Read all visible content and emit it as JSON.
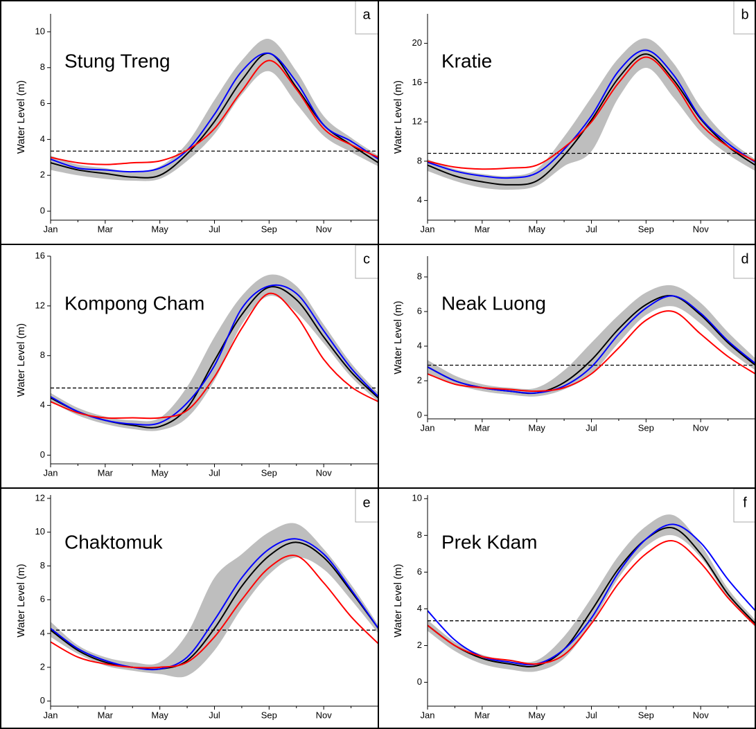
{
  "chart_data": [
    {
      "type": "line",
      "title": "Stung Treng",
      "panel_label": "a",
      "y_label": "Water Level (m)",
      "categories": [
        "Jan",
        null,
        "Mar",
        null,
        "May",
        null,
        "Jul",
        null,
        "Sep",
        null,
        "Nov",
        null,
        null
      ],
      "ylim": [
        -0.5,
        11
      ],
      "yticks": [
        0,
        2,
        4,
        6,
        8,
        10
      ],
      "band": {
        "color": "#bebebe",
        "lower": [
          2.3,
          2.0,
          1.8,
          1.7,
          1.8,
          2.8,
          4.3,
          6.5,
          7.8,
          6.0,
          4.2,
          3.3,
          2.5
        ],
        "upper": [
          3.1,
          2.6,
          2.4,
          2.2,
          2.5,
          3.8,
          6.2,
          8.4,
          9.6,
          7.8,
          5.3,
          4.1,
          3.1
        ]
      },
      "series": [
        {
          "color": "#000000",
          "values": [
            2.7,
            2.3,
            2.1,
            1.9,
            2.0,
            3.2,
            5.0,
            7.3,
            8.8,
            6.9,
            4.8,
            3.7,
            2.7
          ]
        },
        {
          "color": "#0000ff",
          "values": [
            2.9,
            2.4,
            2.3,
            2.2,
            2.4,
            3.4,
            5.4,
            7.8,
            8.8,
            7.2,
            4.8,
            3.9,
            2.9
          ]
        },
        {
          "color": "#ff0000",
          "values": [
            3.0,
            2.7,
            2.6,
            2.7,
            2.8,
            3.4,
            4.6,
            6.7,
            8.4,
            6.8,
            4.6,
            3.7,
            3.0
          ]
        }
      ],
      "reference_line": {
        "value": 3.35,
        "style": "dashed",
        "color": "#000000"
      }
    },
    {
      "type": "line",
      "title": "Kratie",
      "panel_label": "b",
      "y_label": "Water Level (m)",
      "categories": [
        "Jan",
        null,
        "Mar",
        null,
        "May",
        null,
        "Jul",
        null,
        "Sep",
        null,
        "Nov",
        null,
        null
      ],
      "ylim": [
        2,
        23
      ],
      "yticks": [
        4,
        8,
        12,
        16,
        20
      ],
      "band": {
        "color": "#bebebe",
        "lower": [
          7.0,
          6.0,
          5.3,
          5.1,
          5.5,
          7.5,
          9.0,
          14.5,
          17.5,
          14.5,
          11.0,
          8.7,
          7.0
        ],
        "upper": [
          8.2,
          7.2,
          6.7,
          6.5,
          7.2,
          10.5,
          14.5,
          18.5,
          20.5,
          18.0,
          13.5,
          10.3,
          8.2
        ]
      },
      "series": [
        {
          "color": "#000000",
          "values": [
            7.6,
            6.5,
            5.9,
            5.6,
            6.0,
            8.6,
            12.2,
            16.5,
            18.9,
            16.3,
            12.3,
            9.5,
            7.6
          ]
        },
        {
          "color": "#0000ff",
          "values": [
            7.9,
            7.0,
            6.5,
            6.3,
            6.8,
            9.2,
            12.6,
            17.2,
            19.3,
            16.8,
            12.4,
            9.8,
            7.9
          ]
        },
        {
          "color": "#ff0000",
          "values": [
            8.0,
            7.4,
            7.2,
            7.3,
            7.6,
            9.4,
            12.0,
            16.0,
            18.6,
            16.0,
            11.8,
            9.5,
            8.0
          ]
        }
      ],
      "reference_line": {
        "value": 8.8,
        "style": "dashed",
        "color": "#000000"
      }
    },
    {
      "type": "line",
      "title": "Kompong Cham",
      "panel_label": "c",
      "y_label": "Water Level (m)",
      "categories": [
        "Jan",
        null,
        "Mar",
        null,
        "May",
        null,
        "Jul",
        null,
        "Sep",
        null,
        "Nov",
        null,
        null
      ],
      "ylim": [
        -0.7,
        16
      ],
      "yticks": [
        0,
        4,
        8,
        12,
        16
      ],
      "band": {
        "color": "#bebebe",
        "lower": [
          4.3,
          3.2,
          2.5,
          2.1,
          2.0,
          3.0,
          6.0,
          10.5,
          12.8,
          11.5,
          9.0,
          6.3,
          4.3
        ],
        "upper": [
          5.0,
          3.8,
          3.1,
          2.8,
          3.0,
          5.5,
          9.5,
          12.8,
          14.5,
          13.6,
          10.5,
          7.4,
          5.0
        ]
      },
      "series": [
        {
          "color": "#000000",
          "values": [
            4.6,
            3.5,
            2.8,
            2.4,
            2.3,
            3.8,
            7.6,
            11.3,
            13.5,
            12.5,
            9.5,
            6.7,
            4.6
          ]
        },
        {
          "color": "#0000ff",
          "values": [
            4.7,
            3.5,
            2.8,
            2.5,
            2.6,
            4.2,
            7.2,
            11.8,
            13.6,
            13.0,
            10.0,
            7.0,
            4.7
          ]
        },
        {
          "color": "#ff0000",
          "values": [
            4.3,
            3.4,
            3.0,
            3.0,
            3.0,
            3.6,
            6.3,
            10.2,
            13.0,
            11.2,
            7.7,
            5.5,
            4.3
          ]
        }
      ],
      "reference_line": {
        "value": 5.4,
        "style": "dashed",
        "color": "#000000"
      }
    },
    {
      "type": "line",
      "title": "Neak Luong",
      "panel_label": "d",
      "y_label": "Water Level (m)",
      "categories": [
        "Jan",
        null,
        "Mar",
        null,
        "May",
        null,
        "Jul",
        null,
        "Sep",
        null,
        "Nov",
        null,
        null
      ],
      "ylim": [
        -0.2,
        9.2
      ],
      "yticks": [
        0,
        2,
        4,
        6,
        8
      ],
      "band": {
        "color": "#bebebe",
        "lower": [
          2.4,
          1.8,
          1.4,
          1.2,
          1.1,
          1.5,
          2.4,
          4.2,
          5.8,
          6.3,
          5.3,
          3.8,
          2.6
        ],
        "upper": [
          3.2,
          2.3,
          1.8,
          1.6,
          1.6,
          2.6,
          4.2,
          5.8,
          7.1,
          7.5,
          6.5,
          4.8,
          3.3
        ]
      },
      "series": [
        {
          "color": "#000000",
          "values": [
            2.8,
            2.0,
            1.6,
            1.4,
            1.3,
            1.9,
            3.2,
            5.0,
            6.4,
            6.9,
            5.8,
            4.2,
            2.9
          ]
        },
        {
          "color": "#0000ff",
          "values": [
            2.8,
            2.0,
            1.6,
            1.4,
            1.3,
            1.7,
            2.8,
            4.7,
            6.2,
            6.9,
            5.9,
            4.3,
            3.0
          ]
        },
        {
          "color": "#ff0000",
          "values": [
            2.4,
            1.8,
            1.6,
            1.5,
            1.4,
            1.6,
            2.4,
            3.9,
            5.5,
            6.0,
            4.7,
            3.4,
            2.4
          ]
        }
      ],
      "reference_line": {
        "value": 2.9,
        "style": "dashed",
        "color": "#000000"
      }
    },
    {
      "type": "line",
      "title": "Chaktomuk",
      "panel_label": "e",
      "y_label": "Water Level (m)",
      "categories": [
        "Jan",
        null,
        "Mar",
        null,
        "May",
        null,
        "Jul",
        null,
        "Sep",
        null,
        "Nov",
        null,
        null
      ],
      "ylim": [
        -0.3,
        12.2
      ],
      "yticks": [
        0,
        2,
        4,
        6,
        8,
        10,
        12
      ],
      "band": {
        "color": "#bebebe",
        "lower": [
          3.8,
          2.8,
          2.1,
          1.8,
          1.6,
          1.5,
          3.0,
          5.5,
          7.5,
          8.5,
          7.8,
          6.0,
          4.0
        ],
        "upper": [
          4.7,
          3.3,
          2.6,
          2.3,
          2.3,
          4.0,
          7.3,
          8.7,
          10.0,
          10.5,
          9.0,
          6.9,
          4.5
        ]
      },
      "series": [
        {
          "color": "#000000",
          "values": [
            4.2,
            3.0,
            2.3,
            2.0,
            1.9,
            2.4,
            4.3,
            6.8,
            8.6,
            9.4,
            8.5,
            6.5,
            4.3
          ]
        },
        {
          "color": "#0000ff",
          "values": [
            4.3,
            3.1,
            2.4,
            2.0,
            1.9,
            2.6,
            4.8,
            7.3,
            9.0,
            9.6,
            8.7,
            6.6,
            4.3
          ]
        },
        {
          "color": "#ff0000",
          "values": [
            3.5,
            2.6,
            2.2,
            2.0,
            2.0,
            2.3,
            3.8,
            6.0,
            7.9,
            8.6,
            7.0,
            5.0,
            3.4
          ]
        }
      ],
      "reference_line": {
        "value": 4.2,
        "style": "dashed",
        "color": "#000000"
      }
    },
    {
      "type": "line",
      "title": "Prek Kdam",
      "panel_label": "f",
      "y_label": "Water Level (m)",
      "categories": [
        "Jan",
        null,
        "Mar",
        null,
        "May",
        null,
        "Jul",
        null,
        "Sep",
        null,
        "Nov",
        null,
        null
      ],
      "ylim": [
        -1.3,
        10.2
      ],
      "yticks": [
        0,
        2,
        4,
        6,
        8,
        10
      ],
      "band": {
        "color": "#bebebe",
        "lower": [
          2.8,
          1.7,
          1.0,
          0.7,
          0.6,
          1.3,
          3.2,
          5.7,
          7.4,
          8.0,
          6.8,
          4.6,
          3.0
        ],
        "upper": [
          3.4,
          2.2,
          1.5,
          1.2,
          1.2,
          2.5,
          4.6,
          6.9,
          8.5,
          9.1,
          7.5,
          5.1,
          3.4
        ]
      },
      "series": [
        {
          "color": "#000000",
          "values": [
            3.1,
            2.0,
            1.3,
            1.0,
            0.9,
            1.8,
            3.9,
            6.2,
            7.8,
            8.4,
            7.0,
            4.8,
            3.2
          ]
        },
        {
          "color": "#0000ff",
          "values": [
            3.9,
            2.3,
            1.4,
            1.1,
            1.0,
            1.8,
            3.5,
            6.0,
            7.8,
            8.6,
            7.6,
            5.6,
            3.9
          ]
        },
        {
          "color": "#ff0000",
          "values": [
            3.1,
            2.0,
            1.4,
            1.2,
            1.0,
            1.5,
            3.2,
            5.4,
            7.0,
            7.7,
            6.5,
            4.6,
            3.1
          ]
        }
      ],
      "reference_line": {
        "value": 3.35,
        "style": "dashed",
        "color": "#000000"
      }
    }
  ]
}
